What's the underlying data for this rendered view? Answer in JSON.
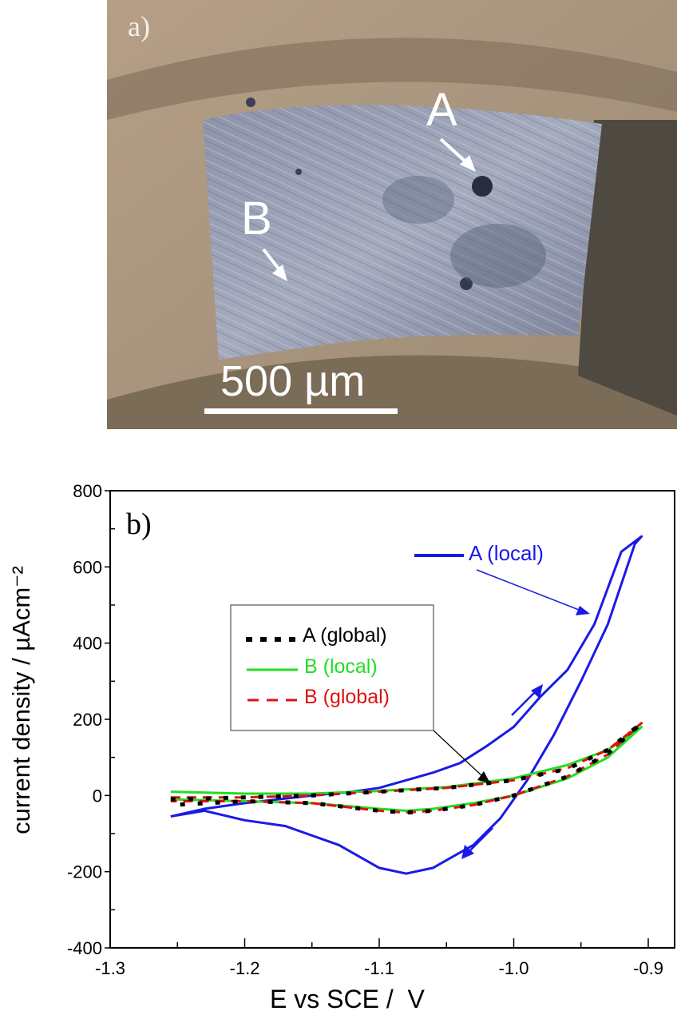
{
  "panel_a": {
    "label": "a)",
    "marker_A": "A",
    "marker_B": "B",
    "scale_bar_label": "500 µm",
    "description": "Optical micrograph of corroded metal sample with pits"
  },
  "panel_b": {
    "label": "b)",
    "legend_box": {
      "entries": [
        {
          "label": "A (global)",
          "color": "#000000",
          "style": "dotted"
        },
        {
          "label": "B (local)",
          "color": "#22dd22",
          "style": "solid"
        },
        {
          "label": "B (global)",
          "color": "#dd1111",
          "style": "dashed"
        }
      ]
    },
    "a_local_label": "A (local)",
    "a_local_color": "#1a1ae6"
  },
  "chart_data": {
    "type": "line",
    "title": "",
    "xlabel": "E vs SCE /  V",
    "ylabel": "current density / µAcm⁻²",
    "xlim": [
      -1.3,
      -0.9
    ],
    "ylim": [
      -400,
      800
    ],
    "xticks": [
      "-1.3",
      "-1.2",
      "-1.1",
      "-1.0",
      "-0.9"
    ],
    "yticks": [
      "-400",
      "-200",
      "0",
      "200",
      "400",
      "600",
      "800"
    ],
    "grid": false,
    "legend_position": "inside upper-left-center",
    "series": [
      {
        "name": "A (local)",
        "color": "#1a1ae6",
        "style": "solid",
        "x": [
          -1.255,
          -1.23,
          -1.2,
          -1.15,
          -1.12,
          -1.1,
          -1.08,
          -1.06,
          -1.04,
          -1.02,
          -1.0,
          -0.98,
          -0.96,
          -0.94,
          -0.92,
          -0.905,
          -0.91,
          -0.93,
          -0.95,
          -0.97,
          -0.99,
          -1.01,
          -1.03,
          -1.05,
          -1.06,
          -1.08,
          -1.1,
          -1.13,
          -1.17,
          -1.2,
          -1.23,
          -1.255
        ],
        "y": [
          -55,
          -35,
          -20,
          0,
          10,
          20,
          40,
          60,
          85,
          130,
          180,
          260,
          330,
          450,
          640,
          680,
          660,
          450,
          300,
          160,
          40,
          -60,
          -130,
          -170,
          -190,
          -205,
          -190,
          -130,
          -80,
          -65,
          -40,
          -55
        ]
      },
      {
        "name": "A (global)",
        "color": "#000000",
        "style": "dotted",
        "x": [
          -1.255,
          -1.2,
          -1.15,
          -1.1,
          -1.05,
          -1.0,
          -0.96,
          -0.93,
          -0.905,
          -0.93,
          -0.96,
          -1.0,
          -1.03,
          -1.06,
          -1.08,
          -1.1,
          -1.15,
          -1.2,
          -1.255
        ],
        "y": [
          -10,
          -5,
          0,
          10,
          20,
          40,
          70,
          120,
          190,
          110,
          50,
          0,
          -25,
          -40,
          -45,
          -40,
          -20,
          -15,
          -25
        ]
      },
      {
        "name": "B (local)",
        "color": "#22dd22",
        "style": "solid",
        "x": [
          -1.255,
          -1.2,
          -1.15,
          -1.1,
          -1.05,
          -1.0,
          -0.96,
          -0.93,
          -0.905,
          -0.93,
          -0.96,
          -1.0,
          -1.03,
          -1.06,
          -1.08,
          -1.1,
          -1.15,
          -1.2,
          -1.255
        ],
        "y": [
          10,
          5,
          5,
          12,
          22,
          45,
          80,
          120,
          180,
          100,
          45,
          0,
          -20,
          -35,
          -40,
          -35,
          -20,
          -15,
          -10
        ]
      },
      {
        "name": "B (global)",
        "color": "#dd1111",
        "style": "dashed",
        "x": [
          -1.255,
          -1.2,
          -1.15,
          -1.1,
          -1.05,
          -1.0,
          -0.96,
          -0.93,
          -0.905,
          -0.93,
          -0.96,
          -1.0,
          -1.03,
          -1.06,
          -1.08,
          -1.1,
          -1.15,
          -1.2,
          -1.255
        ],
        "y": [
          -5,
          -5,
          0,
          10,
          20,
          40,
          72,
          120,
          190,
          108,
          50,
          0,
          -25,
          -40,
          -45,
          -40,
          -20,
          -15,
          -15
        ]
      }
    ],
    "annotations": [
      "A (local) arrow pointing to curve",
      "scan direction arrows (up at ~-0.97 V, down at ~-0.99 V)",
      "legend box arrow pointing to B curves"
    ]
  }
}
